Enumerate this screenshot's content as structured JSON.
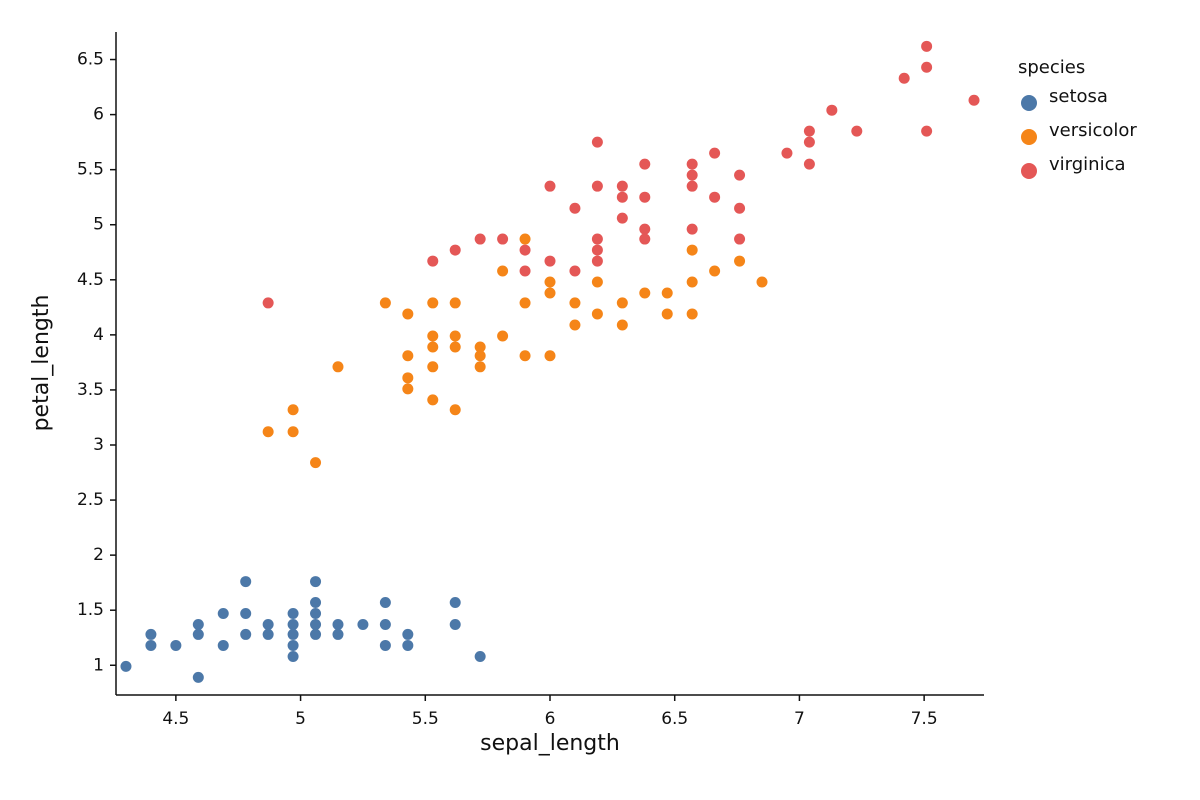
{
  "chart_data": {
    "type": "scatter",
    "x_label": "sepal_length",
    "y_label": "petal_length",
    "legend_title": "species",
    "legend": "top-right",
    "grid": false,
    "xlim": [
      4.26,
      7.74
    ],
    "ylim": [
      0.73,
      6.75
    ],
    "xticks": [
      4.5,
      5,
      5.5,
      6,
      6.5,
      7,
      7.5
    ],
    "yticks": [
      1,
      1.5,
      2,
      2.5,
      3,
      3.5,
      4,
      4.5,
      5,
      5.5,
      6,
      6.5
    ],
    "series": [
      {
        "name": "setosa",
        "color": "#4c78a8",
        "x": [
          4.3,
          4.4,
          4.4,
          4.5,
          4.59,
          4.59,
          4.59,
          4.69,
          4.69,
          4.78,
          4.78,
          4.78,
          4.87,
          4.87,
          4.97,
          4.97,
          4.97,
          4.97,
          4.97,
          5.06,
          5.06,
          5.06,
          5.06,
          5.06,
          5.15,
          5.15,
          5.25,
          5.34,
          5.34,
          5.34,
          5.43,
          5.43,
          5.62,
          5.62,
          5.72
        ],
        "values": [
          0.99,
          1.28,
          1.18,
          1.18,
          1.37,
          1.28,
          0.89,
          1.47,
          1.18,
          1.76,
          1.47,
          1.28,
          1.37,
          1.28,
          1.47,
          1.37,
          1.28,
          1.18,
          1.08,
          1.76,
          1.57,
          1.47,
          1.37,
          1.28,
          1.37,
          1.28,
          1.37,
          1.57,
          1.37,
          1.18,
          1.28,
          1.18,
          1.57,
          1.37,
          1.08
        ]
      },
      {
        "name": "versicolor",
        "color": "#f58518",
        "x": [
          4.87,
          4.97,
          4.97,
          5.06,
          5.15,
          5.34,
          5.43,
          5.43,
          5.43,
          5.43,
          5.53,
          5.53,
          5.53,
          5.53,
          5.53,
          5.62,
          5.62,
          5.62,
          5.62,
          5.72,
          5.72,
          5.72,
          5.81,
          5.81,
          5.9,
          5.9,
          5.9,
          6.0,
          6.0,
          6.0,
          6.1,
          6.1,
          6.19,
          6.19,
          6.29,
          6.29,
          6.38,
          6.47,
          6.47,
          6.57,
          6.57,
          6.57,
          6.66,
          6.76,
          6.85
        ],
        "values": [
          3.12,
          3.32,
          3.12,
          2.84,
          3.71,
          4.29,
          4.19,
          3.81,
          3.61,
          3.51,
          4.29,
          3.99,
          3.89,
          3.71,
          3.41,
          4.29,
          3.99,
          3.89,
          3.32,
          3.89,
          3.81,
          3.71,
          4.58,
          3.99,
          4.87,
          4.29,
          3.81,
          4.48,
          4.38,
          3.81,
          4.29,
          4.09,
          4.48,
          4.19,
          4.29,
          4.09,
          4.38,
          4.38,
          4.19,
          4.77,
          4.48,
          4.19,
          4.58,
          4.67,
          4.48
        ]
      },
      {
        "name": "virginica",
        "color": "#e45756",
        "x": [
          4.87,
          5.53,
          5.62,
          5.72,
          5.81,
          5.9,
          5.9,
          6.0,
          6.0,
          6.1,
          6.1,
          6.19,
          6.19,
          6.19,
          6.19,
          6.19,
          6.29,
          6.29,
          6.29,
          6.38,
          6.38,
          6.38,
          6.38,
          6.57,
          6.57,
          6.57,
          6.57,
          6.66,
          6.66,
          6.76,
          6.76,
          6.76,
          6.95,
          7.04,
          7.04,
          7.04,
          7.13,
          7.23,
          7.42,
          7.51,
          7.51,
          7.51,
          7.7
        ],
        "values": [
          4.29,
          4.67,
          4.77,
          4.87,
          4.87,
          4.77,
          4.58,
          5.35,
          4.67,
          5.15,
          4.58,
          5.75,
          5.35,
          4.87,
          4.77,
          4.67,
          5.35,
          5.25,
          5.06,
          5.55,
          5.25,
          4.96,
          4.87,
          5.55,
          5.45,
          5.35,
          4.96,
          5.65,
          5.25,
          5.45,
          5.15,
          4.87,
          5.65,
          5.85,
          5.75,
          5.55,
          6.04,
          5.85,
          6.33,
          6.62,
          6.43,
          5.85,
          6.13
        ]
      }
    ]
  }
}
